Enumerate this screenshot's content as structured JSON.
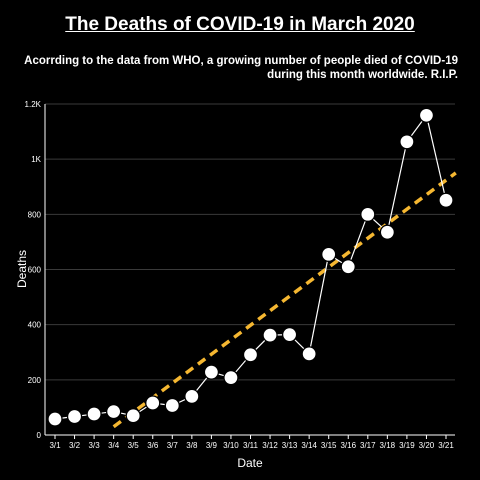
{
  "chart_data": {
    "type": "line",
    "title": "The Deaths of COVID-19 in March 2020",
    "subtitle": "Acorrding to the data from WHO, a growing number of people died of COVID-19 during this month worldwide. R.I.P.",
    "xlabel": "Date",
    "ylabel": "Deaths",
    "categories": [
      "3/1",
      "3/2",
      "3/3",
      "3/4",
      "3/5",
      "3/6",
      "3/7",
      "3/8",
      "3/9",
      "3/10",
      "3/11",
      "3/12",
      "3/13",
      "3/14",
      "3/15",
      "3/16",
      "3/17",
      "3/18",
      "3/19",
      "3/20",
      "3/21"
    ],
    "series": [
      {
        "values": [
          58,
          67,
          76,
          85,
          70,
          116,
          107,
          140,
          228,
          208,
          291,
          362,
          364,
          294,
          655,
          610,
          800,
          735,
          1063,
          1159,
          851
        ]
      }
    ],
    "trend_line": {
      "start_index": 3,
      "start_value": 30,
      "end_index": 20.5,
      "end_value": 950
    },
    "ylim": [
      0,
      1200
    ],
    "yticks": [
      {
        "value": 0,
        "label": "0"
      },
      {
        "value": 200,
        "label": "200"
      },
      {
        "value": 400,
        "label": "400"
      },
      {
        "value": 600,
        "label": "600"
      },
      {
        "value": 800,
        "label": "800"
      },
      {
        "value": 1000,
        "label": "1K"
      },
      {
        "value": 1200,
        "label": "1.2K"
      }
    ],
    "grid": true,
    "colors": {
      "background": "#000000",
      "line": "#ffffff",
      "point_fill": "#ffffff",
      "trend": "#f5b731",
      "grid": "#3a3a3a",
      "axis": "#ffffff",
      "text": "#ffffff"
    }
  }
}
